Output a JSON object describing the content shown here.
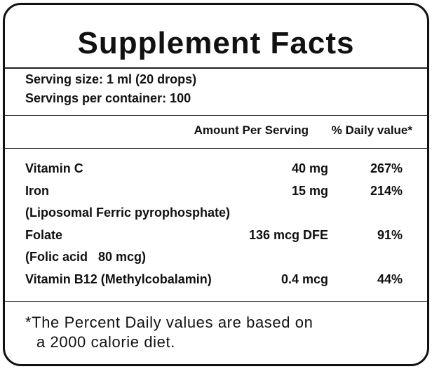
{
  "header": {
    "title": "Supplement Facts"
  },
  "serving": {
    "size": "Serving size: 1 ml (20 drops)",
    "servings": "Servings per container: 100"
  },
  "columns": {
    "amount": "Amount Per Serving",
    "daily_value": "% Daily value*"
  },
  "rows": [
    {
      "name": "Vitamin C",
      "amount": "40 mg",
      "daily_value": "267%"
    },
    {
      "name": "Iron",
      "amount": "15 mg",
      "daily_value": "214%",
      "note": "(Liposomal Ferric pyrophosphate)"
    },
    {
      "name": "Folate",
      "amount": "136 mcg DFE",
      "daily_value": "91%",
      "note": "(Folic acid   80 mcg)"
    },
    {
      "name": "Vitamin B12 (Methylcobalamin)",
      "amount": "0.4 mcg",
      "daily_value": "44%"
    }
  ],
  "footnote": {
    "lines": [
      "*The Percent Daily values are based on",
      "a 2000 calorie diet."
    ]
  }
}
